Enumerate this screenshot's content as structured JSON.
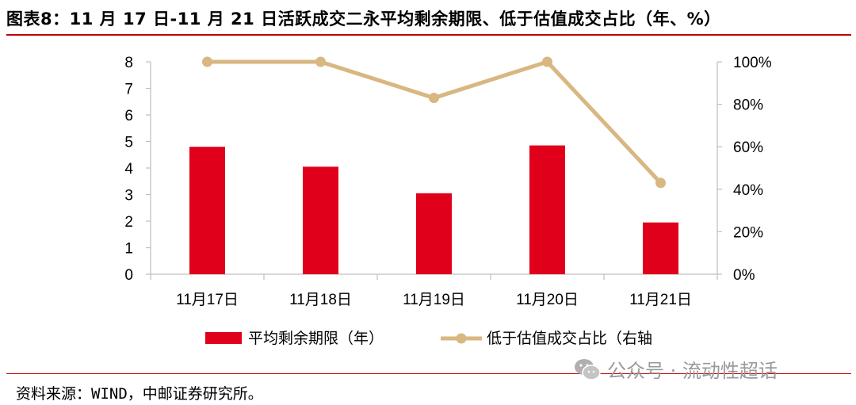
{
  "header": {
    "title": "图表8：11 月 17 日-11 月 21 日活跃成交二永平均剩余期限、低于估值成交占比（年、%）"
  },
  "footer": {
    "source": "资料来源：WIND，中邮证券研究所。",
    "watermark_text": "公众号 · 流动性超话",
    "watermark_icon": "wechat-icon"
  },
  "colors": {
    "bar": "#e0001b",
    "line": "#d8b781",
    "rule": "#c00000",
    "axis": "#bfbfbf"
  },
  "chart_data": {
    "type": "bar",
    "categories": [
      "11月17日",
      "11月18日",
      "11月19日",
      "11月20日",
      "11月21日"
    ],
    "series": [
      {
        "name": "平均剩余期限（年）",
        "type": "bar",
        "axis": "left",
        "values": [
          4.8,
          4.05,
          3.05,
          4.85,
          1.95
        ]
      },
      {
        "name": "低于估值成交占比（右轴",
        "type": "line",
        "axis": "right",
        "values": [
          100,
          100,
          83,
          100,
          43
        ]
      }
    ],
    "y_left": {
      "ticks": [
        "0",
        "1",
        "2",
        "3",
        "4",
        "5",
        "6",
        "7",
        "8"
      ],
      "lim": [
        0,
        8
      ]
    },
    "y_right": {
      "ticks": [
        "0%",
        "20%",
        "40%",
        "60%",
        "80%",
        "100%"
      ],
      "lim": [
        0,
        100
      ]
    },
    "grid": false,
    "legend_position": "bottom"
  }
}
